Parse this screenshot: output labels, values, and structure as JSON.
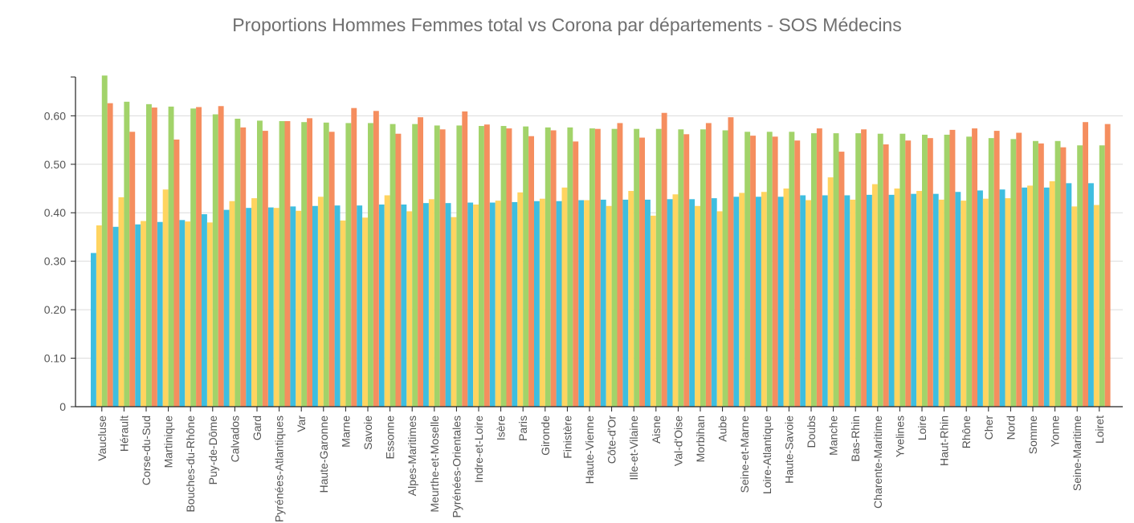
{
  "chart_data": {
    "type": "bar",
    "title": "Proportions Hommes Femmes total vs Corona par départements  - SOS Médecins",
    "xlabel": "",
    "ylabel": "",
    "ylim": [
      0,
      0.68
    ],
    "yticks": [
      {
        "value": 0,
        "label": "0"
      },
      {
        "value": 0.1,
        "label": "0.10"
      },
      {
        "value": 0.2,
        "label": "0.20"
      },
      {
        "value": 0.3,
        "label": "0.30"
      },
      {
        "value": 0.4,
        "label": "0.40"
      },
      {
        "value": 0.5,
        "label": "0.50"
      },
      {
        "value": 0.6,
        "label": "0.60"
      }
    ],
    "grid": true,
    "legend": "none",
    "colors": [
      "#3ebee0",
      "#ffd460",
      "#a2d36a",
      "#f58e5f"
    ],
    "categories": [
      "Vaucluse",
      "Hérault",
      "Corse-du-Sud",
      "Martinique",
      "Bouches-du-Rhône",
      "Puy-de-Dôme",
      "Calvados",
      "Gard",
      "Pyrénées-Atlantiques",
      "Var",
      "Haute-Garonne",
      "Marne",
      "Savoie",
      "Essonne",
      "Alpes-Maritimes",
      "Meurthe-et-Moselle",
      "Pyrénées-Orientales",
      "Indre-et-Loire",
      "Isère",
      "Paris",
      "Gironde",
      "Finistère",
      "Haute-Vienne",
      "Côte-d'Or",
      "Ille-et-Vilaine",
      "Aisne",
      "Val-d'Oise",
      "Morbihan",
      "Aube",
      "Seine-et-Marne",
      "Loire-Atlantique",
      "Haute-Savoie",
      "Doubs",
      "Manche",
      "Bas-Rhin",
      "Charente-Maritime",
      "Yvelines",
      "Loire",
      "Haut-Rhin",
      "Rhône",
      "Cher",
      "Nord",
      "Somme",
      "Yonne",
      "Seine-Maritime",
      "Loiret"
    ],
    "series": [
      {
        "values": [
          0.317,
          0.371,
          0.376,
          0.381,
          0.385,
          0.397,
          0.406,
          0.41,
          0.411,
          0.413,
          0.414,
          0.415,
          0.415,
          0.417,
          0.417,
          0.42,
          0.42,
          0.421,
          0.421,
          0.422,
          0.424,
          0.424,
          0.426,
          0.427,
          0.427,
          0.427,
          0.428,
          0.428,
          0.43,
          0.433,
          0.433,
          0.433,
          0.436,
          0.436,
          0.436,
          0.437,
          0.437,
          0.439,
          0.439,
          0.443,
          0.446,
          0.448,
          0.452,
          0.452,
          0.461,
          0.461
        ]
      },
      {
        "values": [
          0.374,
          0.432,
          0.383,
          0.448,
          0.382,
          0.38,
          0.424,
          0.43,
          0.41,
          0.404,
          0.433,
          0.384,
          0.39,
          0.436,
          0.403,
          0.428,
          0.391,
          0.417,
          0.425,
          0.442,
          0.429,
          0.452,
          0.426,
          0.414,
          0.445,
          0.394,
          0.438,
          0.414,
          0.403,
          0.441,
          0.443,
          0.45,
          0.426,
          0.473,
          0.427,
          0.459,
          0.45,
          0.445,
          0.427,
          0.425,
          0.429,
          0.43,
          0.456,
          0.465,
          0.413,
          0.416
        ]
      },
      {
        "values": [
          0.683,
          0.629,
          0.624,
          0.619,
          0.615,
          0.603,
          0.594,
          0.59,
          0.589,
          0.587,
          0.586,
          0.585,
          0.585,
          0.583,
          0.583,
          0.58,
          0.58,
          0.579,
          0.579,
          0.578,
          0.576,
          0.576,
          0.574,
          0.573,
          0.573,
          0.573,
          0.572,
          0.572,
          0.57,
          0.567,
          0.567,
          0.567,
          0.564,
          0.564,
          0.564,
          0.563,
          0.563,
          0.561,
          0.561,
          0.557,
          0.554,
          0.552,
          0.548,
          0.548,
          0.539,
          0.539
        ]
      },
      {
        "values": [
          0.626,
          0.567,
          0.617,
          0.551,
          0.618,
          0.62,
          0.576,
          0.569,
          0.589,
          0.595,
          0.567,
          0.616,
          0.61,
          0.563,
          0.597,
          0.572,
          0.609,
          0.582,
          0.574,
          0.558,
          0.57,
          0.547,
          0.573,
          0.585,
          0.555,
          0.606,
          0.562,
          0.585,
          0.597,
          0.559,
          0.557,
          0.549,
          0.574,
          0.526,
          0.572,
          0.541,
          0.549,
          0.554,
          0.571,
          0.574,
          0.569,
          0.565,
          0.543,
          0.535,
          0.587,
          0.583
        ]
      }
    ]
  }
}
